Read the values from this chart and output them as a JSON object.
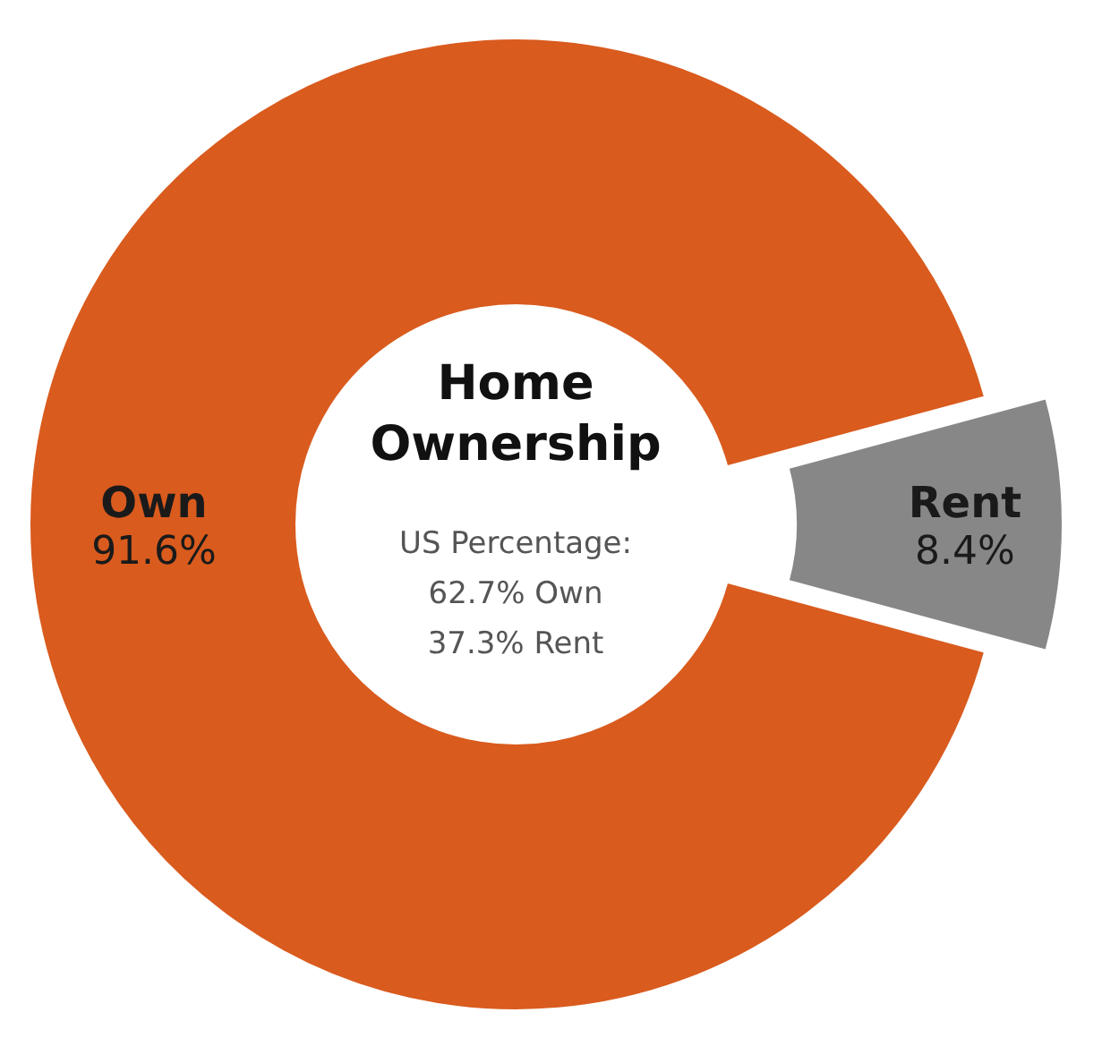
{
  "chart_data": {
    "type": "donut",
    "title": "Home Ownership",
    "subtitle": "US Percentage:",
    "annotations": [
      "62.7% Own",
      "37.3% Rent"
    ],
    "categories": [
      "Own",
      "Rent"
    ],
    "values": [
      91.6,
      8.4
    ],
    "colors": [
      "#d95b1e",
      "#878787"
    ],
    "value_labels": [
      "91.6%",
      "8.4%"
    ]
  }
}
